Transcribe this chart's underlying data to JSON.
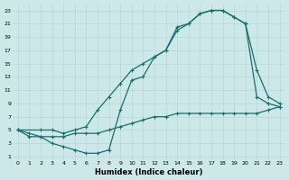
{
  "xlabel": "Humidex (Indice chaleur)",
  "bg_color": "#cce8e8",
  "line_color": "#1a6e6e",
  "xlim": [
    -0.5,
    23.5
  ],
  "ylim": [
    0.5,
    24
  ],
  "xticks": [
    0,
    1,
    2,
    3,
    4,
    5,
    6,
    7,
    8,
    9,
    10,
    11,
    12,
    13,
    14,
    15,
    16,
    17,
    18,
    19,
    20,
    21,
    22,
    23
  ],
  "yticks": [
    1,
    3,
    5,
    7,
    9,
    11,
    13,
    15,
    17,
    19,
    21,
    23
  ],
  "line1_x": [
    0,
    1,
    2,
    3,
    4,
    5,
    6,
    7,
    8,
    9,
    10,
    11,
    12,
    13,
    14,
    15,
    16,
    17,
    18,
    19,
    20,
    21,
    22,
    23
  ],
  "line1_y": [
    5,
    4.5,
    4,
    4,
    4,
    4.5,
    4.5,
    4.5,
    5,
    5.5,
    6,
    6.5,
    7,
    7,
    7.5,
    7.5,
    7.5,
    7.5,
    7.5,
    7.5,
    7.5,
    7.5,
    8,
    8.5
  ],
  "line2_x": [
    0,
    1,
    2,
    3,
    4,
    5,
    6,
    7,
    8,
    9,
    10,
    11,
    12,
    13,
    14,
    15,
    16,
    17,
    18,
    19,
    20,
    21,
    22,
    23
  ],
  "line2_y": [
    5,
    4,
    4,
    3,
    2.5,
    2,
    1.5,
    1.5,
    2,
    8,
    12.5,
    13,
    16,
    17,
    20,
    21,
    22.5,
    23,
    23,
    22,
    21,
    10,
    9,
    8.5
  ],
  "line3_x": [
    0,
    2,
    3,
    4,
    5,
    6,
    7,
    8,
    9,
    10,
    11,
    12,
    13,
    14,
    15,
    16,
    17,
    18,
    19,
    20,
    21,
    22,
    23
  ],
  "line3_y": [
    5,
    5,
    5,
    4.5,
    5,
    5.5,
    8,
    10,
    12,
    14,
    15,
    16,
    17,
    20.5,
    21,
    22.5,
    23,
    23,
    22,
    21,
    14,
    10,
    9
  ]
}
